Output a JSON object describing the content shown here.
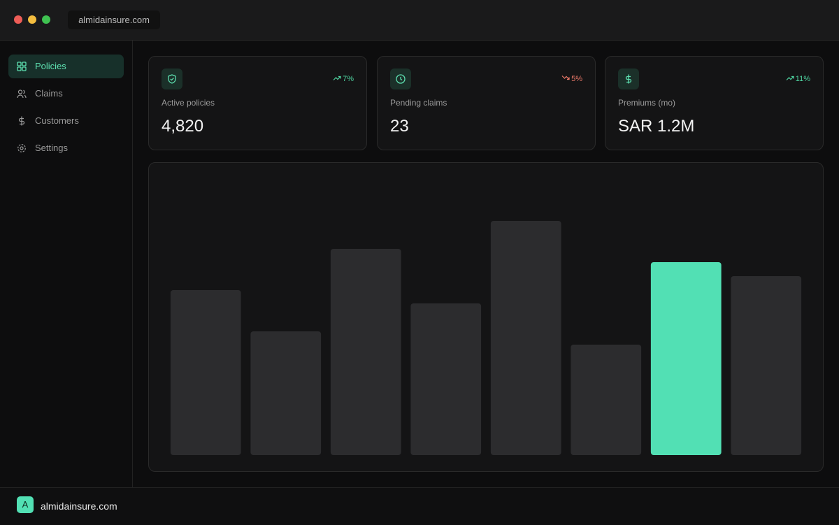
{
  "browser": {
    "url": "almidainsure.com"
  },
  "sidebar": {
    "items": [
      "Policies",
      "Claims",
      "Customers",
      "Settings"
    ],
    "active": 0
  },
  "cards": [
    {
      "label": "Active policies",
      "value": "4,820",
      "trend": "7%",
      "direction": "up"
    },
    {
      "label": "Pending claims",
      "value": "23",
      "trend": "5%",
      "direction": "down"
    },
    {
      "label": "Premiums (mo)",
      "value": "SAR 1.2M",
      "trend": "11%",
      "direction": "up"
    }
  ],
  "chart_data": {
    "type": "bar",
    "values": [
      236,
      177,
      295,
      217,
      335,
      158,
      276,
      256
    ],
    "ylim": [
      0,
      400
    ],
    "colors": [
      "#2c2c2e",
      "#2c2c2e",
      "#2c2c2e",
      "#2c2c2e",
      "#2c2c2e",
      "#2c2c2e",
      "#52e0b4",
      "#2c2c2e"
    ]
  },
  "footer": {
    "badge": "A",
    "brand": "almidainsure.com"
  }
}
